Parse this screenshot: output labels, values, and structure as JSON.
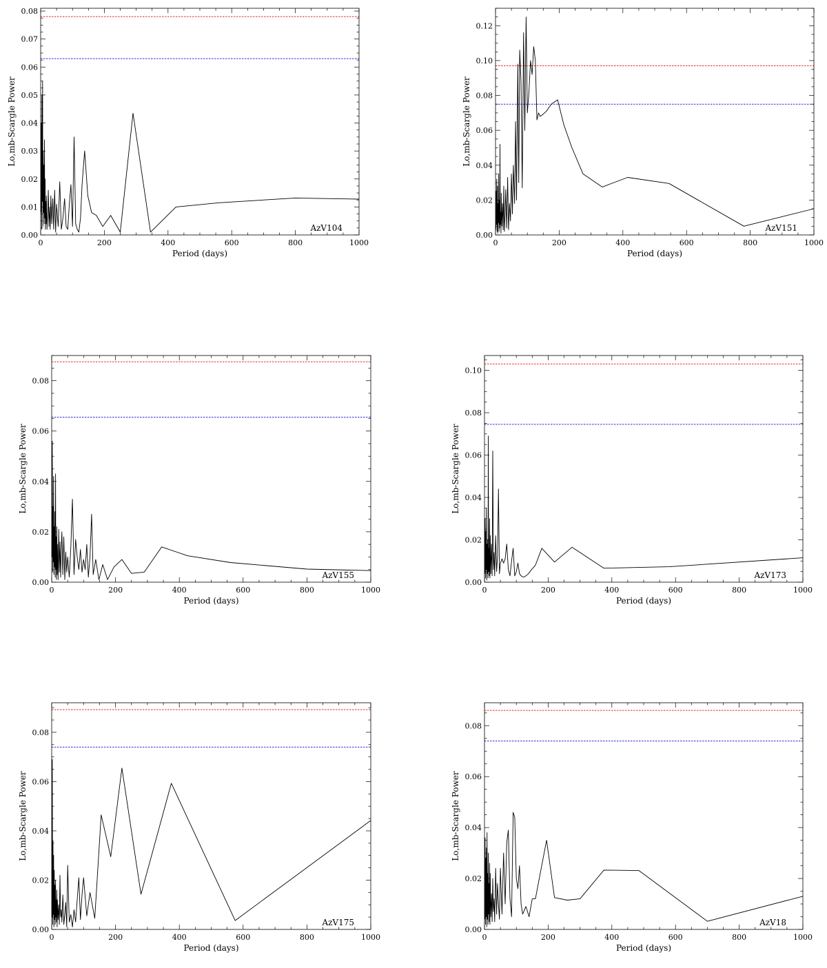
{
  "chart_data": [
    {
      "type": "line",
      "star": "AzV104",
      "xlabel": "Period (days)",
      "ylabel": "Lo,mb-Scargle Power",
      "xlim": [
        0,
        1000
      ],
      "ylim": [
        0,
        0.081
      ],
      "xticks": [
        0,
        200,
        400,
        600,
        800,
        1000
      ],
      "yticks": [
        0.0,
        0.01,
        0.02,
        0.03,
        0.04,
        0.05,
        0.06,
        0.07,
        0.08
      ],
      "ytick_labels": [
        "0.00",
        "0.01",
        "0.02",
        "0.03",
        "0.04",
        "0.05",
        "0.06",
        "0.07",
        "0.08"
      ],
      "thresholds": [
        {
          "value": 0.078,
          "color": "#e8262b"
        },
        {
          "value": 0.063,
          "color": "#2a2ae0"
        }
      ],
      "x": [
        1,
        2,
        3,
        4,
        5,
        6,
        7,
        8,
        9,
        10,
        11,
        12,
        13,
        14,
        15,
        16,
        17,
        18,
        20,
        22,
        24,
        26,
        28,
        30,
        32,
        35,
        38,
        41,
        44,
        47,
        50,
        55,
        60,
        65,
        70,
        75,
        80,
        85,
        90,
        95,
        100,
        105,
        110,
        115,
        120,
        125,
        130,
        138,
        148,
        160,
        175,
        195,
        220,
        250,
        290,
        345,
        425,
        560,
        800,
        1000
      ],
      "y": [
        0.008,
        0.04,
        0.002,
        0.05,
        0.012,
        0.055,
        0.003,
        0.03,
        0.008,
        0.025,
        0.004,
        0.034,
        0.006,
        0.02,
        0.002,
        0.012,
        0.004,
        0.014,
        0.002,
        0.008,
        0.016,
        0.003,
        0.01,
        0.002,
        0.014,
        0.004,
        0.013,
        0.002,
        0.016,
        0.001,
        0.011,
        0.003,
        0.019,
        0.002,
        0.006,
        0.013,
        0.003,
        0.002,
        0.011,
        0.018,
        0.003,
        0.035,
        0.004,
        0.002,
        0.001,
        0.006,
        0.018,
        0.03,
        0.014,
        0.008,
        0.007,
        0.003,
        0.007,
        0.001,
        0.0435,
        0.001,
        0.01,
        0.0115,
        0.0132,
        0.0128
      ]
    },
    {
      "type": "line",
      "star": "AzV151",
      "xlabel": "Period (days)",
      "ylabel": "Lo,mb-Scargle Power",
      "xlim": [
        0,
        1000
      ],
      "ylim": [
        0,
        0.13
      ],
      "xticks": [
        0,
        200,
        400,
        600,
        800,
        1000
      ],
      "yticks": [
        0.0,
        0.02,
        0.04,
        0.06,
        0.08,
        0.1,
        0.12
      ],
      "ytick_labels": [
        "0.00",
        "0.02",
        "0.04",
        "0.06",
        "0.08",
        "0.10",
        "0.12"
      ],
      "thresholds": [
        {
          "value": 0.097,
          "color": "#e8262b"
        },
        {
          "value": 0.075,
          "color": "#2a2ae0"
        }
      ],
      "x": [
        1,
        2,
        3,
        4,
        5,
        6,
        7,
        8,
        9,
        10,
        11,
        12,
        13,
        14,
        15,
        16,
        17,
        18,
        20,
        22,
        24,
        26,
        28,
        30,
        32,
        35,
        38,
        41,
        44,
        47,
        50,
        53,
        56,
        60,
        63,
        66,
        70,
        73,
        76,
        80,
        84,
        88,
        92,
        96,
        100,
        105,
        110,
        115,
        120,
        125,
        130,
        135,
        140,
        148,
        160,
        175,
        195,
        215,
        240,
        275,
        335,
        415,
        545,
        780,
        1000
      ],
      "y": [
        0.003,
        0.025,
        0.006,
        0.032,
        0.002,
        0.028,
        0.001,
        0.018,
        0.007,
        0.035,
        0.002,
        0.02,
        0.004,
        0.052,
        0.006,
        0.013,
        0.001,
        0.024,
        0.005,
        0.018,
        0.003,
        0.028,
        0.002,
        0.012,
        0.026,
        0.004,
        0.033,
        0.003,
        0.018,
        0.008,
        0.035,
        0.012,
        0.04,
        0.018,
        0.065,
        0.02,
        0.098,
        0.03,
        0.106,
        0.088,
        0.027,
        0.116,
        0.06,
        0.125,
        0.07,
        0.082,
        0.1,
        0.092,
        0.108,
        0.1,
        0.066,
        0.07,
        0.068,
        0.069,
        0.071,
        0.075,
        0.0775,
        0.063,
        0.05,
        0.035,
        0.0275,
        0.033,
        0.0295,
        0.005,
        0.015
      ]
    },
    {
      "type": "line",
      "star": "AzV155",
      "xlabel": "Period (days)",
      "ylabel": "Lo,mb-Scargle Power",
      "xlim": [
        0,
        1000
      ],
      "ylim": [
        0,
        0.09
      ],
      "xticks": [
        0,
        200,
        400,
        600,
        800,
        1000
      ],
      "yticks": [
        0.0,
        0.02,
        0.04,
        0.06,
        0.08
      ],
      "ytick_labels": [
        "0.00",
        "0.02",
        "0.04",
        "0.06",
        "0.08"
      ],
      "thresholds": [
        {
          "value": 0.0875,
          "color": "#e8262b"
        },
        {
          "value": 0.0655,
          "color": "#2a2ae0"
        }
      ],
      "x": [
        1,
        2,
        3,
        4,
        5,
        6,
        7,
        8,
        9,
        10,
        11,
        12,
        13,
        14,
        15,
        16,
        17,
        18,
        20,
        22,
        24,
        26,
        28,
        30,
        32,
        35,
        38,
        41,
        44,
        47,
        50,
        55,
        60,
        65,
        70,
        75,
        80,
        85,
        90,
        95,
        100,
        105,
        110,
        115,
        120,
        125,
        130,
        138,
        148,
        160,
        175,
        195,
        220,
        250,
        290,
        345,
        425,
        560,
        800,
        1000
      ],
      "y": [
        0.01,
        0.056,
        0.004,
        0.03,
        0.008,
        0.042,
        0.003,
        0.022,
        0.006,
        0.028,
        0.002,
        0.043,
        0.005,
        0.018,
        0.001,
        0.022,
        0.003,
        0.015,
        0.001,
        0.021,
        0.004,
        0.016,
        0.002,
        0.013,
        0.02,
        0.003,
        0.018,
        0.001,
        0.012,
        0.004,
        0.01,
        0.002,
        0.014,
        0.033,
        0.003,
        0.017,
        0.01,
        0.005,
        0.013,
        0.004,
        0.009,
        0.005,
        0.015,
        0.002,
        0.01,
        0.027,
        0.003,
        0.009,
        0.001,
        0.007,
        0.001,
        0.006,
        0.009,
        0.0035,
        0.004,
        0.014,
        0.0105,
        0.0078,
        0.0052,
        0.0046
      ]
    },
    {
      "type": "line",
      "star": "AzV173",
      "xlabel": "Period (days)",
      "ylabel": "Lo,mb-Scargle Power",
      "xlim": [
        0,
        1000
      ],
      "ylim": [
        0,
        0.107
      ],
      "xticks": [
        0,
        200,
        400,
        600,
        800,
        1000
      ],
      "yticks": [
        0.0,
        0.02,
        0.04,
        0.06,
        0.08,
        0.1
      ],
      "ytick_labels": [
        "0.00",
        "0.02",
        "0.04",
        "0.06",
        "0.08",
        "0.10"
      ],
      "thresholds": [
        {
          "value": 0.103,
          "color": "#e8262b"
        },
        {
          "value": 0.0745,
          "color": "#2a2ae0"
        }
      ],
      "x": [
        1,
        2,
        3,
        4,
        5,
        6,
        7,
        8,
        9,
        10,
        11,
        12,
        13,
        14,
        15,
        16,
        17,
        18,
        20,
        22,
        24,
        26,
        28,
        30,
        32,
        35,
        38,
        41,
        44,
        47,
        50,
        55,
        60,
        65,
        70,
        75,
        80,
        85,
        90,
        95,
        100,
        105,
        110,
        115,
        120,
        125,
        130,
        138,
        148,
        160,
        180,
        220,
        275,
        375,
        580,
        1000
      ],
      "y": [
        0.004,
        0.03,
        0.002,
        0.024,
        0.006,
        0.035,
        0.001,
        0.018,
        0.004,
        0.02,
        0.002,
        0.069,
        0.005,
        0.016,
        0.003,
        0.03,
        0.002,
        0.022,
        0.004,
        0.018,
        0.003,
        0.062,
        0.006,
        0.014,
        0.003,
        0.022,
        0.005,
        0.012,
        0.044,
        0.004,
        0.009,
        0.011,
        0.009,
        0.011,
        0.018,
        0.006,
        0.003,
        0.01,
        0.016,
        0.003,
        0.005,
        0.009,
        0.004,
        0.003,
        0.0025,
        0.0025,
        0.003,
        0.004,
        0.006,
        0.008,
        0.016,
        0.0095,
        0.0165,
        0.0066,
        0.0073,
        0.0115
      ]
    },
    {
      "type": "line",
      "star": "AzV175",
      "xlabel": "Period (days)",
      "ylabel": "Lo,mb-Scargle Power",
      "xlim": [
        0,
        1000
      ],
      "ylim": [
        0,
        0.092
      ],
      "xticks": [
        0,
        200,
        400,
        600,
        800,
        1000
      ],
      "yticks": [
        0.0,
        0.02,
        0.04,
        0.06,
        0.08
      ],
      "ytick_labels": [
        "0.00",
        "0.02",
        "0.04",
        "0.06",
        "0.08"
      ],
      "thresholds": [
        {
          "value": 0.0892,
          "color": "#e8262b"
        },
        {
          "value": 0.074,
          "color": "#2a2ae0"
        }
      ],
      "x": [
        1,
        2,
        3,
        4,
        5,
        6,
        7,
        8,
        9,
        10,
        11,
        12,
        13,
        14,
        15,
        16,
        17,
        18,
        20,
        22,
        24,
        26,
        28,
        30,
        32,
        35,
        38,
        41,
        44,
        47,
        50,
        55,
        60,
        65,
        70,
        75,
        80,
        85,
        90,
        95,
        100,
        110,
        120,
        135,
        155,
        185,
        220,
        280,
        375,
        575,
        1000
      ],
      "y": [
        0.005,
        0.069,
        0.002,
        0.036,
        0.006,
        0.03,
        0.001,
        0.024,
        0.004,
        0.018,
        0.002,
        0.02,
        0.005,
        0.012,
        0.003,
        0.016,
        0.001,
        0.012,
        0.004,
        0.01,
        0.002,
        0.022,
        0.005,
        0.008,
        0.003,
        0.014,
        0.002,
        0.006,
        0.011,
        0.001,
        0.026,
        0.003,
        0.006,
        0.001,
        0.008,
        0.003,
        0.012,
        0.021,
        0.004,
        0.014,
        0.021,
        0.0055,
        0.015,
        0.0045,
        0.0465,
        0.0295,
        0.0655,
        0.0143,
        0.0593,
        0.0036,
        0.0442
      ]
    },
    {
      "type": "line",
      "star": "AzV18",
      "xlabel": "Period (days)",
      "ylabel": "Lo,mb-Scargle Power",
      "xlim": [
        0,
        1000
      ],
      "ylim": [
        0,
        0.089
      ],
      "xticks": [
        0,
        200,
        400,
        600,
        800,
        1000
      ],
      "yticks": [
        0.0,
        0.02,
        0.04,
        0.06,
        0.08
      ],
      "ytick_labels": [
        "0.00",
        "0.02",
        "0.04",
        "0.06",
        "0.08"
      ],
      "thresholds": [
        {
          "value": 0.086,
          "color": "#e8262b"
        },
        {
          "value": 0.074,
          "color": "#2a2ae0"
        }
      ],
      "x": [
        1,
        2,
        3,
        4,
        5,
        6,
        7,
        8,
        9,
        10,
        11,
        12,
        13,
        14,
        15,
        16,
        17,
        18,
        20,
        22,
        24,
        26,
        28,
        30,
        32,
        35,
        38,
        41,
        44,
        47,
        50,
        55,
        60,
        65,
        70,
        75,
        80,
        85,
        90,
        95,
        100,
        105,
        110,
        115,
        120,
        130,
        140,
        150,
        160,
        175,
        195,
        220,
        260,
        300,
        375,
        485,
        700,
        1000
      ],
      "y": [
        0.004,
        0.036,
        0.002,
        0.028,
        0.005,
        0.032,
        0.001,
        0.038,
        0.004,
        0.022,
        0.002,
        0.03,
        0.006,
        0.018,
        0.003,
        0.026,
        0.002,
        0.022,
        0.005,
        0.014,
        0.003,
        0.02,
        0.007,
        0.012,
        0.003,
        0.024,
        0.006,
        0.018,
        0.01,
        0.004,
        0.024,
        0.006,
        0.03,
        0.01,
        0.034,
        0.039,
        0.012,
        0.005,
        0.046,
        0.044,
        0.02,
        0.016,
        0.025,
        0.01,
        0.006,
        0.009,
        0.005,
        0.012,
        0.012,
        0.022,
        0.035,
        0.0125,
        0.0115,
        0.012,
        0.0233,
        0.0231,
        0.0032,
        0.013
      ]
    }
  ]
}
